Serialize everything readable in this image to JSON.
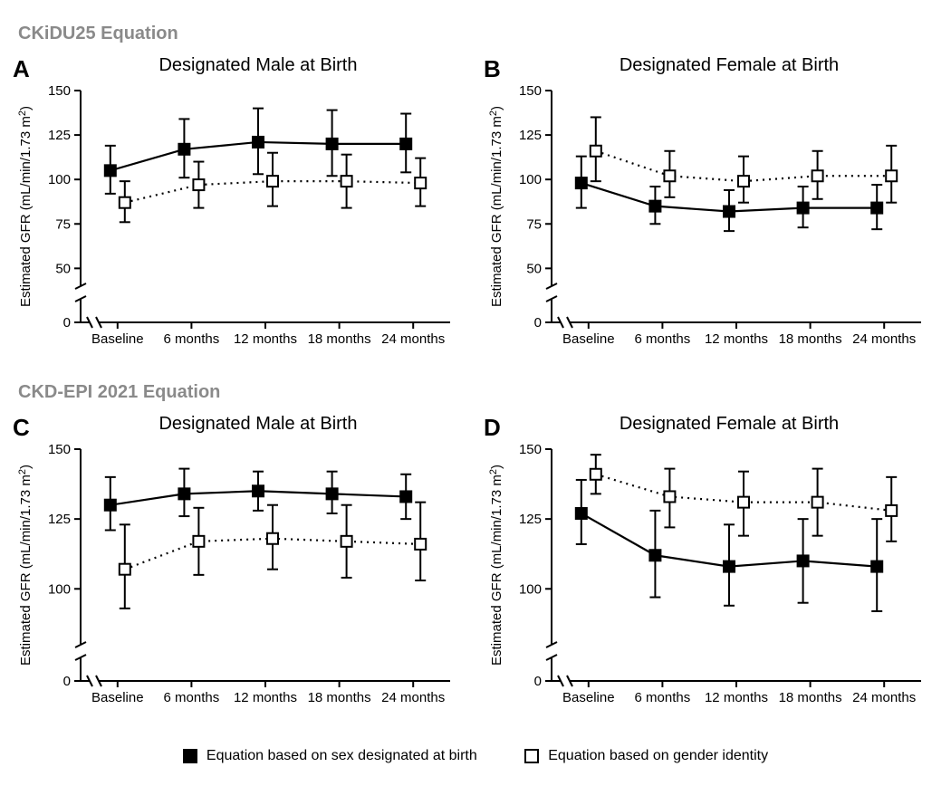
{
  "sections": [
    {
      "title": "CKiDU25 Equation"
    },
    {
      "title": "CKD-EPI 2021 Equation"
    }
  ],
  "legend": {
    "filled": "Equation based on sex designated at birth",
    "open": "Equation based on gender identity"
  },
  "style": {
    "axis_color": "#000000",
    "axis_width": 2,
    "tick_len": 7,
    "line_width": 2.2,
    "marker_size": 6,
    "err_cap": 6,
    "filled_fill": "#000000",
    "open_fill": "#ffffff",
    "font_axis": 15,
    "font_ylabel": 15,
    "title_fontsize": 20,
    "letter_fontsize": 26,
    "section_color": "#8a8a8a"
  },
  "axis_common": {
    "ylabel": "Estimated GFR (mL/min/1.73 m²)",
    "y_break_low": 0,
    "y_break_high": 40,
    "x_categories": [
      "Baseline",
      "6 months",
      "12 months",
      "18 months",
      "24 months"
    ],
    "x_stagger": 2
  },
  "panels": [
    {
      "letter": "A",
      "title": "Designated Male at Birth",
      "ylim": [
        40,
        150
      ],
      "yticks": [
        50,
        75,
        100,
        125,
        150
      ],
      "yzero_tick": 0,
      "series": [
        {
          "kind": "filled",
          "dash": "solid",
          "y": [
            105,
            117,
            121,
            120,
            120
          ],
          "lo": [
            92,
            101,
            103,
            102,
            104
          ],
          "hi": [
            119,
            134,
            140,
            139,
            137
          ]
        },
        {
          "kind": "open",
          "dash": "dotted",
          "y": [
            87,
            97,
            99,
            99,
            98
          ],
          "lo": [
            76,
            84,
            85,
            84,
            85
          ],
          "hi": [
            99,
            110,
            115,
            114,
            112
          ]
        }
      ]
    },
    {
      "letter": "B",
      "title": "Designated Female at Birth",
      "ylim": [
        40,
        150
      ],
      "yticks": [
        50,
        75,
        100,
        125,
        150
      ],
      "yzero_tick": 0,
      "series": [
        {
          "kind": "filled",
          "dash": "solid",
          "y": [
            98,
            85,
            82,
            84,
            84
          ],
          "lo": [
            84,
            75,
            71,
            73,
            72
          ],
          "hi": [
            113,
            96,
            94,
            96,
            97
          ]
        },
        {
          "kind": "open",
          "dash": "dotted",
          "y": [
            116,
            102,
            99,
            102,
            102
          ],
          "lo": [
            99,
            90,
            87,
            89,
            87
          ],
          "hi": [
            135,
            116,
            113,
            116,
            119
          ]
        }
      ]
    },
    {
      "letter": "C",
      "title": "Designated Male at Birth",
      "ylim": [
        80,
        150
      ],
      "yticks": [
        100,
        125,
        150
      ],
      "yzero_tick": 0,
      "series": [
        {
          "kind": "filled",
          "dash": "solid",
          "y": [
            130,
            134,
            135,
            134,
            133
          ],
          "lo": [
            121,
            126,
            128,
            127,
            125
          ],
          "hi": [
            140,
            143,
            142,
            142,
            141
          ]
        },
        {
          "kind": "open",
          "dash": "dotted",
          "y": [
            107,
            117,
            118,
            117,
            116
          ],
          "lo": [
            93,
            105,
            107,
            104,
            103
          ],
          "hi": [
            123,
            129,
            130,
            130,
            131
          ]
        }
      ]
    },
    {
      "letter": "D",
      "title": "Designated Female at Birth",
      "ylim": [
        80,
        150
      ],
      "yticks": [
        100,
        125,
        150
      ],
      "yzero_tick": 0,
      "series": [
        {
          "kind": "filled",
          "dash": "solid",
          "y": [
            127,
            112,
            108,
            110,
            108
          ],
          "lo": [
            116,
            97,
            94,
            95,
            92
          ],
          "hi": [
            139,
            128,
            123,
            125,
            125
          ]
        },
        {
          "kind": "open",
          "dash": "dotted",
          "y": [
            141,
            133,
            131,
            131,
            128
          ],
          "lo": [
            134,
            122,
            119,
            119,
            117
          ],
          "hi": [
            148,
            143,
            142,
            143,
            140
          ]
        }
      ]
    }
  ]
}
